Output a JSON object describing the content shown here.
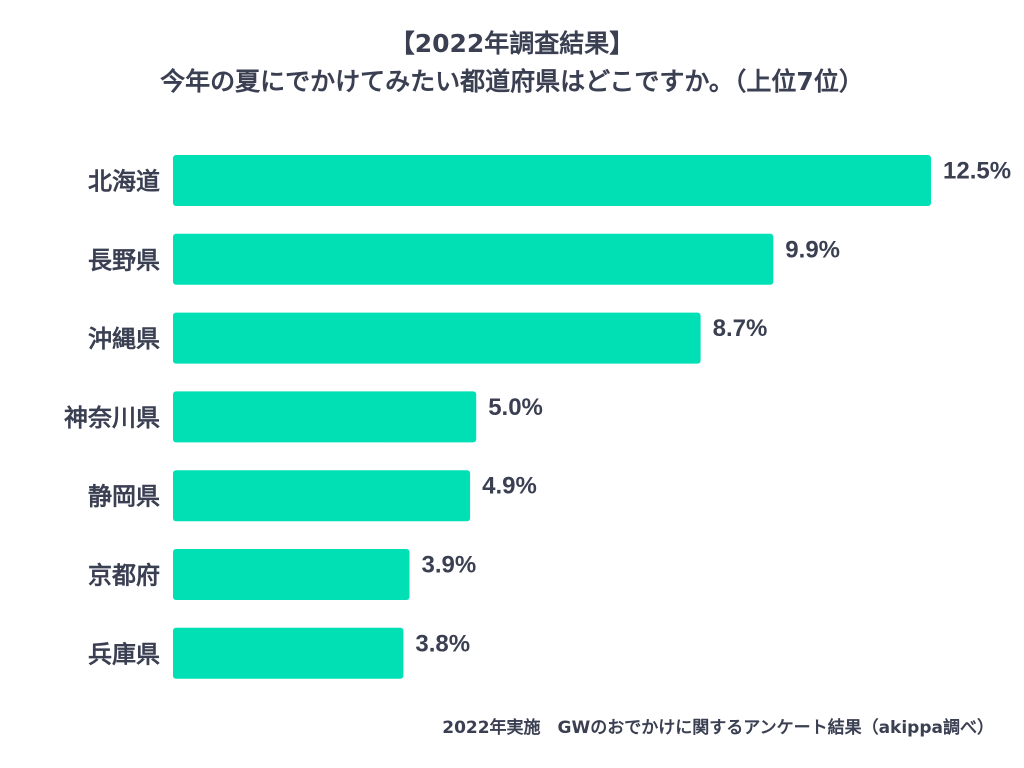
{
  "chart_data": {
    "type": "bar",
    "orientation": "horizontal",
    "title_line1": "【2022年調査結果】",
    "title_line2": "今年の夏にでかけてみたい都道府県はどこですか。（上位7位）",
    "categories": [
      "北海道",
      "長野県",
      "沖縄県",
      "神奈川県",
      "静岡県",
      "京都府",
      "兵庫県"
    ],
    "values": [
      12.5,
      9.9,
      8.7,
      5.0,
      4.9,
      3.9,
      3.8
    ],
    "value_labels": [
      "12.5%",
      "9.9%",
      "8.7%",
      "5.0%",
      "4.9%",
      "3.9%",
      "3.8%"
    ],
    "xlim": [
      0,
      12.5
    ],
    "xlabel": "",
    "ylabel": "",
    "grid": false,
    "bar_color": "#00e0b4",
    "text_color": "#3a3f52"
  },
  "footnote": "2022年実施　GWのおでかけに関するアンケート結果（akippa調べ）"
}
